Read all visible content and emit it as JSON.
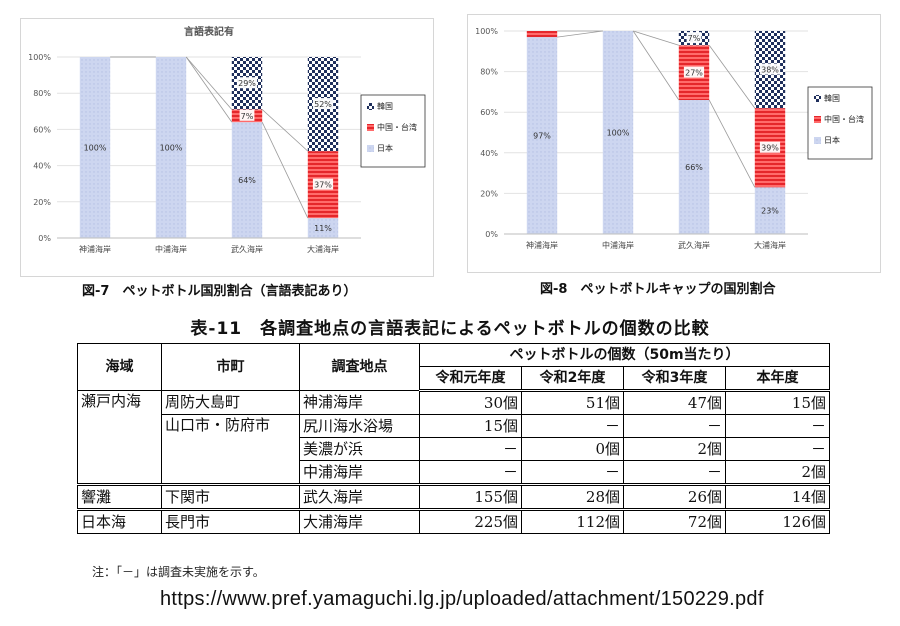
{
  "charts": {
    "fig7_caption": "図-7　ペットボトル国別割合（言語表記あり）",
    "fig8_caption": "図-8　ペットボトルキャップの国別割合"
  },
  "chart_data": [
    {
      "type": "bar",
      "stacked": true,
      "title": "言語表記有",
      "categories": [
        "神浦海岸",
        "中浦海岸",
        "武久海岸",
        "大浦海岸"
      ],
      "series": [
        {
          "name": "日本",
          "values": [
            100,
            100,
            64,
            11
          ],
          "labels": [
            "100%",
            "100%",
            "64%",
            "11%"
          ],
          "color": "#c9d3ee"
        },
        {
          "name": "中国・台湾",
          "values": [
            0,
            0,
            7,
            37
          ],
          "labels": [
            "",
            "",
            "7%",
            "37%"
          ],
          "color": "#ee3c3c"
        },
        {
          "name": "韓国",
          "values": [
            0,
            0,
            29,
            52
          ],
          "labels": [
            "",
            "",
            "29%",
            "52%"
          ],
          "color": "#2c3e70"
        }
      ],
      "legend_order": [
        "韓国",
        "中国・台湾",
        "日本"
      ],
      "ylim": [
        0,
        100
      ],
      "yticks": [
        "0%",
        "20%",
        "40%",
        "60%",
        "80%",
        "100%"
      ],
      "legend_position": "right",
      "series_lines": true
    },
    {
      "type": "bar",
      "stacked": true,
      "title": "",
      "categories": [
        "神浦海岸",
        "中浦海岸",
        "武久海岸",
        "大浦海岸"
      ],
      "series": [
        {
          "name": "日本",
          "values": [
            97,
            100,
            66,
            23
          ],
          "labels": [
            "97%",
            "100%",
            "66%",
            "23%"
          ],
          "color": "#c9d3ee"
        },
        {
          "name": "中国・台湾",
          "values": [
            3,
            0,
            27,
            39
          ],
          "labels": [
            "",
            "",
            "27%",
            "39%"
          ],
          "color": "#ee3c3c"
        },
        {
          "name": "韓国",
          "values": [
            0,
            0,
            7,
            38
          ],
          "labels": [
            "",
            "",
            "7%",
            "38%"
          ],
          "color": "#2c3e70"
        }
      ],
      "legend_order": [
        "韓国",
        "中国・台湾",
        "日本"
      ],
      "ylim": [
        0,
        100
      ],
      "yticks": [
        "0%",
        "20%",
        "40%",
        "60%",
        "80%",
        "100%"
      ],
      "legend_position": "right",
      "series_lines": true
    }
  ],
  "table": {
    "title": "表-11　各調査地点の言語表記によるペットボトルの個数の比較",
    "headers": {
      "sea_area": "海域",
      "city": "市町",
      "site": "調査地点",
      "count_group": "ペットボトルの個数（50m当たり）",
      "years": [
        "令和元年度",
        "令和2年度",
        "令和3年度",
        "本年度"
      ]
    },
    "rows": [
      {
        "sea": "瀬戸内海",
        "city": "周防大島町",
        "site": "神浦海岸",
        "values": [
          "30個",
          "51個",
          "47個",
          "15個"
        ]
      },
      {
        "sea": "",
        "city": "山口市・防府市",
        "site": "尻川海水浴場",
        "values": [
          "15個",
          "－",
          "－",
          "－"
        ]
      },
      {
        "sea": "",
        "city": "",
        "site": "美濃が浜",
        "values": [
          "－",
          "0個",
          "2個",
          "－"
        ]
      },
      {
        "sea": "",
        "city": "",
        "site": "中浦海岸",
        "values": [
          "－",
          "－",
          "－",
          "2個"
        ]
      },
      {
        "sea": "響灘",
        "city": "下関市",
        "site": "武久海岸",
        "values": [
          "155個",
          "28個",
          "26個",
          "14個"
        ]
      },
      {
        "sea": "日本海",
        "city": "長門市",
        "site": "大浦海岸",
        "values": [
          "225個",
          "112個",
          "72個",
          "126個"
        ]
      }
    ],
    "note": "注：「－」は調査未実施を示す。"
  },
  "source_url": "https://www.pref.yamaguchi.lg.jp/uploaded/attachment/150229.pdf"
}
